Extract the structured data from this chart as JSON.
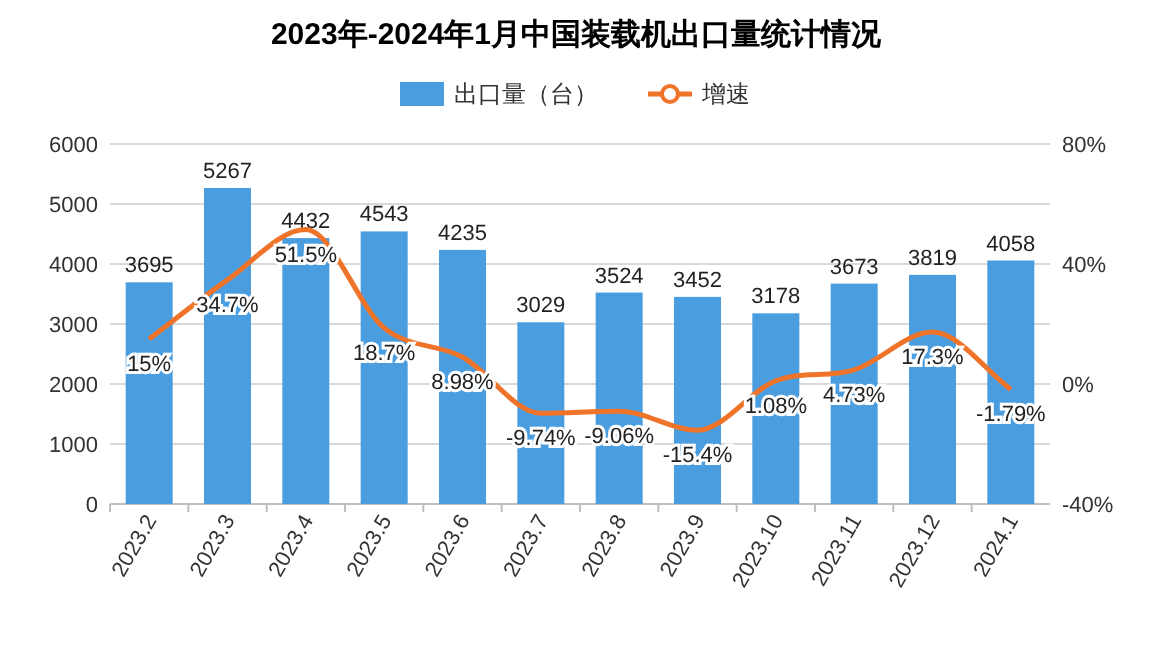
{
  "chart_data": {
    "type": "bar",
    "title": "2023年-2024年1月中国装载机出口量统计情况",
    "categories": [
      "2023.2",
      "2023.3",
      "2023.4",
      "2023.5",
      "2023.6",
      "2023.7",
      "2023.8",
      "2023.9",
      "2023.10",
      "2023.11",
      "2023.12",
      "2024.1"
    ],
    "series": [
      {
        "name": "出口量（台）",
        "color": "#4a9ee0",
        "values": [
          3695,
          5267,
          4432,
          4543,
          4235,
          3029,
          3524,
          3452,
          3178,
          3673,
          3819,
          4058
        ],
        "value_labels": [
          "3695",
          "5267",
          "4432",
          "4543",
          "4235",
          "3029",
          "3524",
          "3452",
          "3178",
          "3673",
          "3819",
          "4058"
        ]
      },
      {
        "name": "增速",
        "type": "line",
        "axis": "y2",
        "color": "#ef7329",
        "values": [
          15,
          34.7,
          51.5,
          18.7,
          8.98,
          -9.74,
          -9.06,
          -15.4,
          1.08,
          4.73,
          17.3,
          -1.79
        ],
        "value_labels": [
          "15%",
          "34.7%",
          "51.5%",
          "18.7%",
          "8.98%",
          "-9.74%",
          "-9.06%",
          "-15.4%",
          "1.08%",
          "4.73%",
          "17.3%",
          "-1.79%"
        ]
      }
    ],
    "ylim": [
      0,
      6000
    ],
    "yticks": [
      0,
      1000,
      2000,
      3000,
      4000,
      5000,
      6000
    ],
    "y2lim": [
      -40,
      80
    ],
    "y2ticks": [
      {
        "value": -40,
        "label": "-40%"
      },
      {
        "value": 0,
        "label": "0%"
      },
      {
        "value": 40,
        "label": "40%"
      },
      {
        "value": 80,
        "label": "80%"
      }
    ],
    "grid": "y",
    "legend": "top",
    "marker": "none"
  }
}
